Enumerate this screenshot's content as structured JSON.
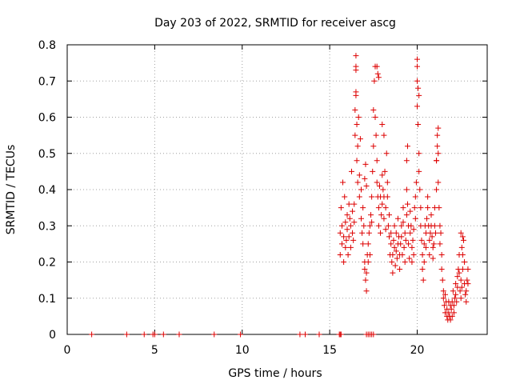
{
  "chart_data": {
    "type": "scatter",
    "title": "Day 203 of 2022, SRMTID for receiver ascg",
    "xlabel": "GPS time / hours",
    "ylabel": "SRMTID / TECUs",
    "xlim": [
      0,
      24
    ],
    "ylim": [
      0,
      0.8
    ],
    "x_ticks": [
      0,
      5,
      10,
      15,
      20
    ],
    "x_tick_labels": [
      "0",
      "5",
      "10",
      "15",
      "20"
    ],
    "y_ticks": [
      0,
      0.1,
      0.2,
      0.3,
      0.4,
      0.5,
      0.6,
      0.7,
      0.8
    ],
    "y_tick_labels": [
      "0",
      "0.1",
      "0.2",
      "0.3",
      "0.4",
      "0.5",
      "0.6",
      "0.7",
      "0.8"
    ],
    "grid": true,
    "marker": "+",
    "marker_color": "#dd0000",
    "series": [
      {
        "name": "SRMTID",
        "x": [
          1.4,
          3.4,
          4.4,
          4.9,
          5.0,
          5.5,
          6.4,
          8.4,
          9.9,
          13.3,
          13.6,
          14.4,
          15.55,
          15.6,
          15.65,
          17.1,
          17.2,
          17.3,
          17.4,
          17.5,
          15.6,
          15.6,
          15.65,
          15.7,
          15.7,
          15.75,
          15.8,
          15.8,
          15.85,
          15.9,
          15.9,
          15.95,
          16.0,
          16.0,
          16.05,
          16.1,
          16.1,
          16.15,
          16.2,
          16.2,
          16.25,
          16.3,
          16.3,
          16.35,
          16.4,
          16.4,
          16.45,
          16.45,
          16.5,
          16.5,
          16.55,
          16.55,
          16.6,
          16.6,
          16.65,
          16.7,
          16.7,
          16.75,
          16.8,
          16.8,
          16.85,
          16.9,
          16.9,
          16.95,
          17.0,
          17.0,
          17.05,
          17.1,
          17.1,
          17.15,
          17.2,
          17.2,
          17.25,
          17.3,
          17.3,
          17.35,
          17.4,
          17.4,
          17.45,
          17.5,
          17.5,
          17.55,
          17.6,
          17.6,
          17.65,
          17.7,
          17.7,
          17.75,
          17.8,
          17.8,
          17.85,
          17.9,
          17.9,
          17.95,
          18.0,
          18.0,
          18.05,
          18.1,
          18.1,
          18.15,
          18.2,
          18.2,
          18.25,
          18.3,
          18.3,
          18.35,
          18.4,
          18.4,
          18.45,
          18.5,
          18.5,
          18.55,
          18.6,
          18.6,
          18.65,
          18.7,
          18.7,
          18.75,
          18.8,
          18.8,
          18.85,
          18.9,
          18.9,
          18.95,
          19.0,
          19.0,
          19.05,
          19.1,
          19.1,
          19.15,
          19.2,
          19.2,
          19.25,
          19.3,
          19.3,
          19.35,
          19.4,
          19.4,
          19.45,
          19.5,
          19.5,
          19.55,
          19.6,
          19.6,
          19.65,
          19.7,
          19.7,
          19.75,
          19.8,
          19.8,
          19.85,
          19.9,
          19.9,
          19.95,
          20.0,
          20.0,
          20.0,
          20.05,
          20.1,
          20.1,
          20.15,
          20.2,
          20.2,
          20.25,
          20.3,
          20.3,
          20.35,
          20.4,
          20.4,
          20.45,
          20.5,
          20.5,
          20.55,
          20.6,
          20.6,
          20.65,
          20.7,
          20.7,
          20.75,
          20.8,
          20.8,
          20.85,
          20.9,
          20.9,
          20.95,
          21.0,
          21.0,
          21.05,
          21.1,
          21.1,
          21.15,
          21.2,
          21.2,
          21.25,
          21.3,
          21.3,
          21.35,
          21.4,
          21.4,
          21.45,
          21.5,
          21.5,
          21.55,
          21.6,
          21.6,
          21.65,
          21.7,
          21.7,
          21.75,
          21.8,
          21.8,
          21.85,
          21.9,
          21.9,
          21.95,
          22.0,
          22.0,
          22.05,
          22.1,
          22.1,
          22.15,
          22.2,
          22.2,
          22.25,
          22.3,
          22.3,
          22.35,
          22.4,
          22.4,
          22.45,
          22.5,
          22.5,
          22.55,
          22.6,
          22.6,
          22.65,
          22.7,
          22.7,
          22.75,
          22.8,
          22.8,
          22.85,
          22.9,
          22.9,
          16.5,
          16.5,
          16.5,
          17.0,
          17.05,
          17.1,
          17.7,
          17.75,
          17.8,
          18.0,
          18.1,
          19.4,
          19.45,
          20.0,
          20.05,
          20.1,
          21.1,
          21.15,
          21.2,
          22.5,
          22.55,
          22.6
        ],
        "y": [
          0,
          0,
          0,
          0,
          0,
          0,
          0,
          0,
          0,
          0,
          0,
          0,
          0,
          0,
          0,
          0,
          0,
          0,
          0,
          0,
          0.28,
          0.22,
          0.35,
          0.25,
          0.3,
          0.42,
          0.2,
          0.27,
          0.38,
          0.24,
          0.31,
          0.26,
          0.33,
          0.29,
          0.22,
          0.36,
          0.27,
          0.32,
          0.24,
          0.3,
          0.45,
          0.28,
          0.34,
          0.26,
          0.31,
          0.36,
          0.55,
          0.62,
          0.67,
          0.73,
          0.48,
          0.58,
          0.42,
          0.52,
          0.6,
          0.38,
          0.44,
          0.54,
          0.32,
          0.4,
          0.28,
          0.35,
          0.25,
          0.3,
          0.2,
          0.18,
          0.15,
          0.12,
          0.17,
          0.22,
          0.25,
          0.2,
          0.28,
          0.3,
          0.22,
          0.33,
          0.38,
          0.31,
          0.45,
          0.52,
          0.62,
          0.7,
          0.74,
          0.6,
          0.55,
          0.48,
          0.42,
          0.38,
          0.35,
          0.3,
          0.41,
          0.38,
          0.28,
          0.33,
          0.36,
          0.44,
          0.4,
          0.32,
          0.38,
          0.45,
          0.29,
          0.35,
          0.5,
          0.42,
          0.38,
          0.3,
          0.27,
          0.33,
          0.22,
          0.28,
          0.25,
          0.2,
          0.17,
          0.22,
          0.26,
          0.3,
          0.24,
          0.19,
          0.23,
          0.28,
          0.21,
          0.25,
          0.32,
          0.27,
          0.22,
          0.18,
          0.25,
          0.3,
          0.27,
          0.22,
          0.35,
          0.31,
          0.24,
          0.28,
          0.2,
          0.26,
          0.33,
          0.4,
          0.36,
          0.3,
          0.25,
          0.21,
          0.28,
          0.34,
          0.3,
          0.24,
          0.2,
          0.26,
          0.22,
          0.29,
          0.35,
          0.32,
          0.38,
          0.42,
          0.76,
          0.7,
          0.63,
          0.58,
          0.5,
          0.45,
          0.4,
          0.35,
          0.3,
          0.26,
          0.22,
          0.18,
          0.15,
          0.2,
          0.25,
          0.3,
          0.28,
          0.24,
          0.32,
          0.38,
          0.35,
          0.3,
          0.26,
          0.22,
          0.28,
          0.33,
          0.3,
          0.27,
          0.24,
          0.21,
          0.25,
          0.3,
          0.35,
          0.28,
          0.4,
          0.48,
          0.55,
          0.5,
          0.42,
          0.35,
          0.3,
          0.25,
          0.28,
          0.22,
          0.18,
          0.15,
          0.12,
          0.1,
          0.08,
          0.11,
          0.06,
          0.09,
          0.05,
          0.07,
          0.04,
          0.06,
          0.09,
          0.05,
          0.08,
          0.04,
          0.07,
          0.05,
          0.09,
          0.12,
          0.08,
          0.06,
          0.1,
          0.14,
          0.11,
          0.09,
          0.16,
          0.13,
          0.18,
          0.22,
          0.17,
          0.12,
          0.15,
          0.1,
          0.13,
          0.18,
          0.22,
          0.26,
          0.2,
          0.14,
          0.11,
          0.09,
          0.12,
          0.15,
          0.18,
          0.14,
          0.77,
          0.74,
          0.66,
          0.43,
          0.47,
          0.41,
          0.74,
          0.72,
          0.71,
          0.58,
          0.55,
          0.48,
          0.52,
          0.74,
          0.68,
          0.66,
          0.48,
          0.52,
          0.57,
          0.28,
          0.24,
          0.27
        ]
      }
    ]
  }
}
